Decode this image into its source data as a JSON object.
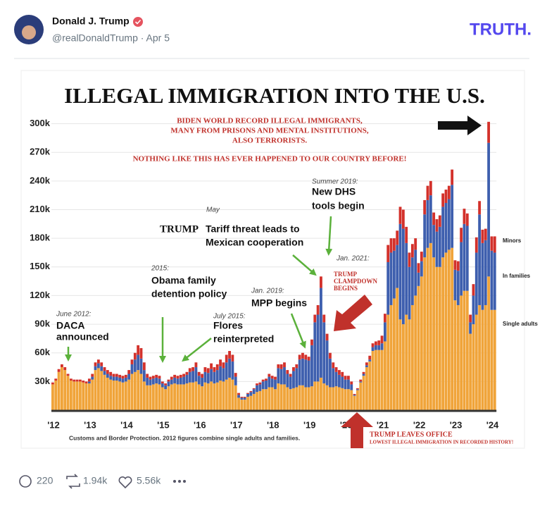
{
  "post": {
    "author": "Donald J. Trump",
    "handle": "@realDonaldTrump · Apr 5",
    "logo": "TRUTH.",
    "replies": "220",
    "reposts": "1.94k",
    "likes": "5.56k"
  },
  "chart_data": {
    "type": "bar",
    "stacked": true,
    "title": "ILLEGAL IMMIGRATION INTO THE U.S.",
    "categories": [
      "'12",
      null,
      null,
      null,
      null,
      null,
      null,
      null,
      null,
      null,
      null,
      null,
      "'13",
      null,
      null,
      null,
      null,
      null,
      null,
      null,
      null,
      null,
      null,
      null,
      "'14",
      null,
      null,
      null,
      null,
      null,
      null,
      null,
      null,
      null,
      null,
      null,
      "'15",
      null,
      null,
      null,
      null,
      null,
      null,
      null,
      null,
      null,
      null,
      null,
      "'16",
      null,
      null,
      null,
      null,
      null,
      null,
      null,
      null,
      null,
      null,
      null,
      "'17",
      null,
      null,
      null,
      null,
      null,
      null,
      null,
      null,
      null,
      null,
      null,
      "'18",
      null,
      null,
      null,
      null,
      null,
      null,
      null,
      null,
      null,
      null,
      null,
      "'19",
      null,
      null,
      null,
      null,
      null,
      null,
      null,
      null,
      null,
      null,
      null,
      "'20",
      null,
      null,
      null,
      null,
      null,
      null,
      null,
      null,
      null,
      null,
      null,
      "'21",
      null,
      null,
      null,
      null,
      null,
      null,
      null,
      null,
      null,
      null,
      null,
      "'22",
      null,
      null,
      null,
      null,
      null,
      null,
      null,
      null,
      null,
      null,
      null,
      "'23",
      null,
      null,
      null,
      null,
      null,
      null,
      null,
      null,
      null,
      null,
      null,
      "'24",
      null
    ],
    "series": [
      {
        "name": "Minors",
        "color": "#d3312b",
        "values": [
          2,
          2,
          3,
          3,
          3,
          2,
          2,
          2,
          2,
          2,
          2,
          2,
          3,
          3,
          4,
          4,
          4,
          4,
          4,
          4,
          3,
          3,
          3,
          3,
          3,
          4,
          5,
          7,
          10,
          11,
          8,
          4,
          3,
          3,
          3,
          3,
          2,
          2,
          2,
          3,
          3,
          3,
          3,
          3,
          3,
          4,
          4,
          5,
          4,
          4,
          5,
          5,
          6,
          5,
          6,
          7,
          6,
          8,
          8,
          7,
          4,
          2,
          1,
          1,
          1,
          1,
          1,
          2,
          2,
          2,
          2,
          3,
          3,
          3,
          4,
          5,
          5,
          4,
          3,
          4,
          4,
          5,
          6,
          5,
          4,
          6,
          8,
          10,
          12,
          8,
          7,
          6,
          6,
          5,
          5,
          5,
          4,
          4,
          3,
          1,
          1,
          2,
          2,
          3,
          4,
          4,
          4,
          5,
          8,
          9,
          18,
          15,
          13,
          15,
          18,
          20,
          17,
          15,
          14,
          12,
          10,
          10,
          15,
          15,
          15,
          13,
          13,
          12,
          14,
          14,
          14,
          16,
          10,
          10,
          15,
          16,
          13,
          8,
          12,
          16,
          14,
          14,
          12,
          22,
          15,
          17
        ]
      },
      {
        "name": "In families",
        "color": "#3e5fae",
        "values": [
          0,
          0,
          0,
          0,
          0,
          0,
          0,
          0,
          0,
          0,
          0,
          0,
          2,
          3,
          4,
          5,
          5,
          4,
          4,
          4,
          4,
          4,
          4,
          4,
          4,
          6,
          10,
          13,
          16,
          16,
          12,
          8,
          6,
          6,
          6,
          6,
          4,
          4,
          5,
          5,
          6,
          6,
          7,
          8,
          9,
          11,
          12,
          15,
          9,
          9,
          11,
          11,
          13,
          12,
          13,
          15,
          14,
          18,
          20,
          19,
          9,
          3,
          2,
          2,
          3,
          4,
          5,
          7,
          7,
          8,
          9,
          11,
          9,
          10,
          16,
          16,
          18,
          14,
          13,
          18,
          20,
          27,
          28,
          29,
          28,
          43,
          62,
          70,
          94,
          64,
          47,
          30,
          20,
          15,
          13,
          12,
          10,
          10,
          6,
          1,
          1,
          1,
          2,
          2,
          2,
          4,
          5,
          5,
          7,
          20,
          55,
          55,
          50,
          45,
          100,
          100,
          75,
          55,
          50,
          48,
          14,
          16,
          45,
          50,
          50,
          34,
          37,
          42,
          53,
          52,
          53,
          66,
          32,
          36,
          56,
          70,
          68,
          12,
          30,
          65,
          95,
          70,
          68,
          140,
          62,
          60
        ]
      },
      {
        "name": "Single adults",
        "color": "#f0a43a",
        "values": [
          27,
          31,
          40,
          45,
          42,
          36,
          31,
          30,
          30,
          30,
          29,
          28,
          28,
          32,
          42,
          44,
          41,
          37,
          34,
          32,
          31,
          31,
          30,
          29,
          30,
          32,
          38,
          40,
          42,
          38,
          30,
          26,
          26,
          27,
          28,
          27,
          24,
          22,
          25,
          27,
          28,
          27,
          27,
          27,
          28,
          29,
          29,
          30,
          27,
          25,
          29,
          28,
          30,
          28,
          29,
          31,
          30,
          32,
          34,
          32,
          26,
          13,
          11,
          11,
          14,
          15,
          17,
          19,
          20,
          22,
          22,
          24,
          24,
          22,
          28,
          27,
          27,
          24,
          22,
          23,
          24,
          26,
          26,
          24,
          24,
          25,
          30,
          30,
          34,
          28,
          26,
          24,
          24,
          25,
          24,
          23,
          22,
          22,
          21,
          15,
          21,
          29,
          36,
          45,
          51,
          62,
          63,
          63,
          63,
          72,
          100,
          110,
          117,
          128,
          95,
          90,
          100,
          95,
          110,
          120,
          130,
          140,
          160,
          170,
          175,
          160,
          150,
          150,
          160,
          165,
          168,
          170,
          115,
          110,
          120,
          125,
          125,
          80,
          90,
          100,
          110,
          105,
          110,
          140,
          105,
          105
        ]
      }
    ],
    "ylim": [
      0,
      310
    ],
    "yticks": [
      {
        "value": 30,
        "label": "30k"
      },
      {
        "value": 60,
        "label": "60k"
      },
      {
        "value": 90,
        "label": "90k"
      },
      {
        "value": 120,
        "label": "120k"
      },
      {
        "value": 150,
        "label": "150k"
      },
      {
        "value": 180,
        "label": "180k"
      },
      {
        "value": 210,
        "label": "210k"
      },
      {
        "value": 240,
        "label": "240k"
      },
      {
        "value": 270,
        "label": "270k"
      },
      {
        "value": 300,
        "label": "300k"
      }
    ],
    "grid": true,
    "annotations": [
      "BIDEN WORLD RECORD ILLEGAL IMMIGRANTS,",
      "MANY FROM PRISONS AND MENTAL INSTITUTIONS,",
      "ALSO TERRORISTS.",
      "NOTHING LIKE THIS HAS EVER HAPPENED TO OUR COUNTRY BEFORE!",
      "June 2012:",
      "DACA",
      "announced",
      "2015:",
      "Obama family",
      "detention policy",
      "July 2015:",
      "Flores",
      "reinterpreted",
      "May",
      "TRUMP",
      "Tariff threat leads to",
      "Mexican cooperation",
      "Jan. 2019:",
      "MPP begins",
      "Summer 2019:",
      "New DHS",
      "tools begin",
      "Jan. 2021:",
      "TRUMP",
      "CLAMPDOWN",
      "BEGINS",
      "TRUMP LEAVES OFFICE",
      "LOWEST ILLEGAL IMMIGRATION IN RECORDED HISTORY!",
      "Customs and Border Protection. 2012 figures combine single adults and families."
    ]
  }
}
